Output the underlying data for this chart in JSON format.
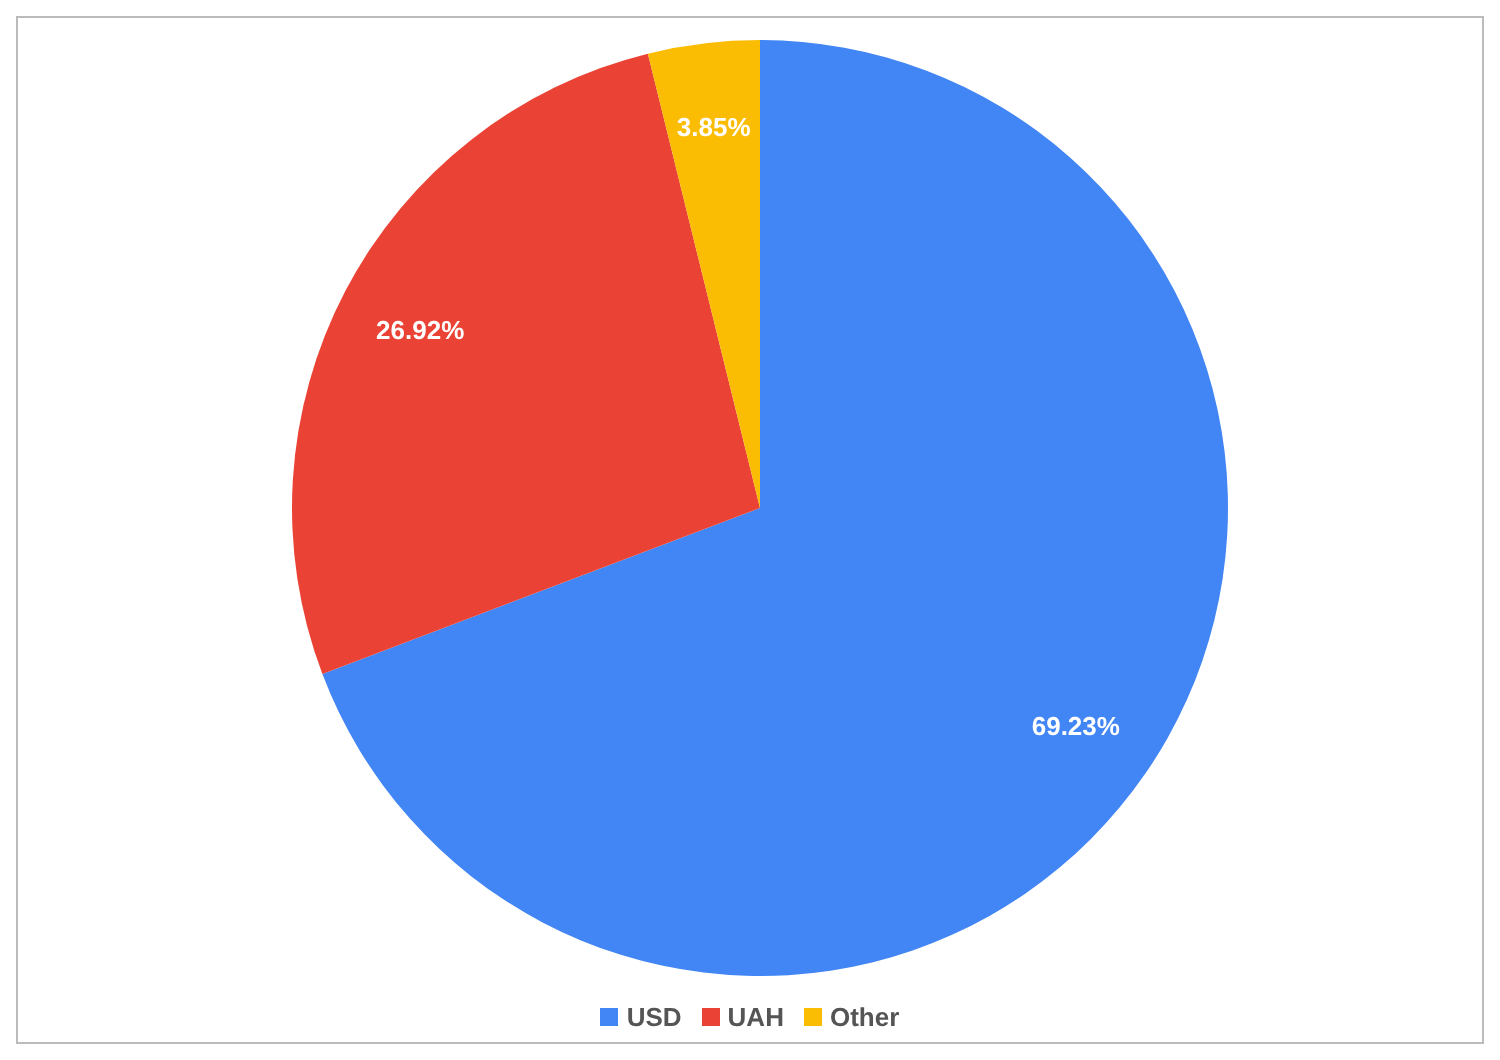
{
  "chart_data": {
    "type": "pie",
    "categories": [
      "USD",
      "UAH",
      "Other"
    ],
    "values": [
      69.23,
      26.92,
      3.85
    ],
    "colors": [
      "#4285f4",
      "#ea4335",
      "#fbbc04"
    ],
    "value_labels": [
      "69.23%",
      "26.92%",
      "3.85%"
    ],
    "legend": "bottom"
  }
}
